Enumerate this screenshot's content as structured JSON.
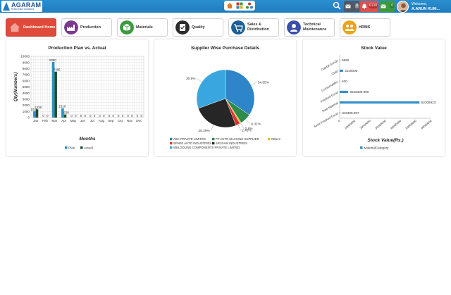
{
  "header": {
    "logo_text": "AGARAM",
    "logo_subtitle": "Enterprise Solutions",
    "notif_counts": [
      "0",
      "6130",
      "0"
    ],
    "welcome_label": "Welcome,",
    "user_name": "A.ARUN KUM...",
    "colors": {
      "bar": "#1f7bbf",
      "notif_alert": "#d9534f",
      "notif_ok": "#3c9a3c"
    }
  },
  "tiles": [
    {
      "label": "Dashboard Home",
      "icon": "home-icon",
      "active": true
    },
    {
      "label": "Production",
      "icon": "factory-icon",
      "active": false
    },
    {
      "label": "Materials",
      "icon": "box-icon",
      "active": false
    },
    {
      "label": "Quality",
      "icon": "quality-icon",
      "active": false
    },
    {
      "label": "Sales & Distribution",
      "icon": "sales-icon",
      "active": false
    },
    {
      "label": "Technical Maintenance",
      "icon": "maintenance-icon",
      "active": false
    },
    {
      "label": "HRMS",
      "icon": "people-icon",
      "active": false
    }
  ],
  "chart_data": [
    {
      "type": "bar",
      "title": "Production Plan vs. Actual",
      "xlabel": "Months",
      "ylabel": "Qty(Numbers)",
      "ylim": [
        0,
        10000
      ],
      "yticks": [
        0,
        1000,
        2000,
        3000,
        4000,
        5000,
        6000,
        7000,
        8000,
        9000,
        10000
      ],
      "categories": [
        "Jan",
        "Feb",
        "Mar",
        "Apr",
        "May",
        "Jun",
        "Jul",
        "Aug",
        "Sep",
        "Oct",
        "Nov",
        "Dec"
      ],
      "series": [
        {
          "name": "Plan",
          "color": "#2f8fc9",
          "values": [
            1028,
            0,
            9080,
            1510,
            0,
            0,
            0,
            0,
            0,
            0,
            0,
            0
          ],
          "labels": [
            "1028",
            "0",
            "9080",
            "1510",
            "0",
            "0",
            "0",
            "0",
            "0",
            "0",
            "0",
            "0"
          ]
        },
        {
          "name": "Actual",
          "color": "#1e4d2b",
          "values": [
            1338,
            0,
            7495,
            500,
            0,
            0,
            0,
            0,
            0,
            0,
            0,
            0
          ],
          "labels": [
            "1338",
            "0",
            "7495",
            "500",
            "0",
            "0",
            "0",
            "0",
            "0",
            "0",
            "0",
            "0"
          ]
        }
      ],
      "grid": true,
      "legend": "bottom"
    },
    {
      "type": "pie",
      "title": "Supplier Wise Purchase Details",
      "slices": [
        {
          "name": "ABC PRIVATE LIMITED",
          "value": 34.55,
          "label": "34.55%",
          "color": "#2e86c8"
        },
        {
          "name": "PT AUTO MACHINE SUPPLIER",
          "value": 6.31,
          "label": "6.31%",
          "color": "#2e8b4a"
        },
        {
          "name": "Others",
          "value": 0.8,
          "label": "0.8%",
          "color": "#d4c528"
        },
        {
          "name": "SPARE AUTO INDUSTRIES",
          "value": 2.45,
          "label": "2.45%",
          "color": "#d9362b"
        },
        {
          "name": "SRI RAM INDUSTRIES",
          "value": 25.39,
          "label": "25.39%",
          "color": "#262626"
        },
        {
          "name": "WELDOLINE COMPONENTS PRIVATE LIMITED",
          "value": 30.5,
          "label": "30.5%",
          "color": "#3aa6e0"
        }
      ],
      "legend": "bottom"
    },
    {
      "type": "bar",
      "orientation": "horizontal",
      "title": "Stock Value",
      "xlabel": "Stock Value(Rs.)",
      "xlim": [
        0,
        60000000
      ],
      "xticks": [
        "0",
        "10000000",
        "20000000",
        "30000000",
        "40000000",
        "50000000",
        "60000000"
      ],
      "categories": [
        "Capital Goods",
        "Child",
        "Consumables",
        "Finished Good",
        "Raw Material",
        "Semi Finished Good"
      ],
      "series": [
        {
          "name": "MaterialCategory",
          "color": "#2f8fc9",
          "values": [
            5650,
            2226000,
            400,
            5526309.999,
            52305923,
            349499.997
          ],
          "labels": [
            "5650",
            "2226000",
            "400",
            "5526309.999",
            "52305923",
            "349499.997"
          ]
        }
      ],
      "grid": false,
      "legend": "bottom"
    }
  ]
}
